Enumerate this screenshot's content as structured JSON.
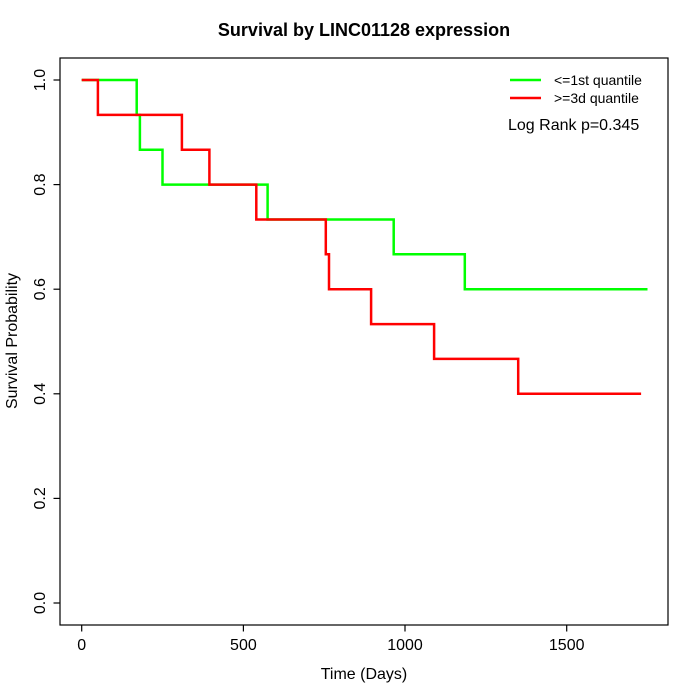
{
  "chart_data": {
    "type": "line",
    "variant": "kaplan_meier_step",
    "title": "Survival by LINC01128 expression",
    "xlabel": "Time (Days)",
    "ylabel": "Survival Probability",
    "x_ticks": [
      "0",
      "500",
      "1000",
      "1500"
    ],
    "y_ticks": [
      "0.0",
      "0.2",
      "0.4",
      "0.6",
      "0.8",
      "1.0"
    ],
    "xlim": [
      0,
      1750
    ],
    "ylim": [
      0,
      1
    ],
    "grid": false,
    "legend_position": "top-right",
    "annotation": "Log Rank p=0.345",
    "series": [
      {
        "name": "<=1st quantile",
        "color": "#00ff00",
        "points": [
          {
            "t": 0,
            "s": 1.0
          },
          {
            "t": 170,
            "s": 0.9333
          },
          {
            "t": 180,
            "s": 0.8667
          },
          {
            "t": 250,
            "s": 0.8
          },
          {
            "t": 575,
            "s": 0.7333
          },
          {
            "t": 965,
            "s": 0.6667
          },
          {
            "t": 1185,
            "s": 0.6
          }
        ],
        "end_time": 1750,
        "final_survival": 0.6
      },
      {
        "name": ">=3d quantile",
        "color": "#ff0000",
        "points": [
          {
            "t": 0,
            "s": 1.0
          },
          {
            "t": 50,
            "s": 0.9333
          },
          {
            "t": 310,
            "s": 0.8667
          },
          {
            "t": 395,
            "s": 0.8
          },
          {
            "t": 540,
            "s": 0.7333
          },
          {
            "t": 755,
            "s": 0.6667
          },
          {
            "t": 765,
            "s": 0.6
          },
          {
            "t": 895,
            "s": 0.5333
          },
          {
            "t": 1090,
            "s": 0.4667
          },
          {
            "t": 1350,
            "s": 0.4
          }
        ],
        "end_time": 1730,
        "final_survival": 0.4
      }
    ]
  }
}
